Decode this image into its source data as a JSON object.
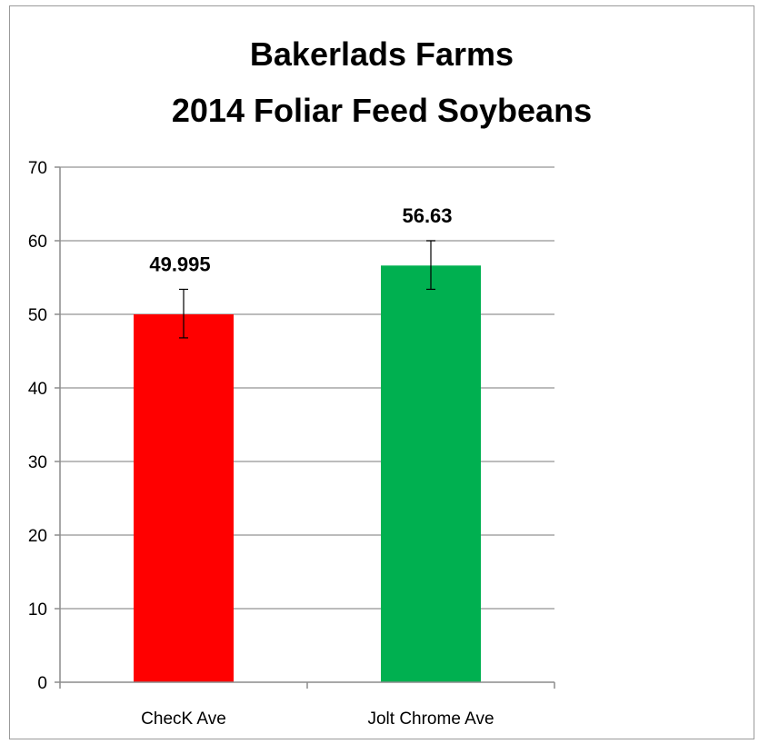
{
  "chart_data": {
    "type": "bar",
    "title": [
      "Bakerlads Farms",
      "2014 Foliar Feed Soybeans"
    ],
    "categories": [
      "ChecK Ave",
      "Jolt Chrome Ave"
    ],
    "values": [
      49.995,
      56.63
    ],
    "value_labels": [
      "49.995",
      "56.63"
    ],
    "error_bars": [
      {
        "low": 46.8,
        "high": 53.4
      },
      {
        "low": 53.4,
        "high": 60.0
      }
    ],
    "colors": [
      "#ff0000",
      "#00b050"
    ],
    "ylim": [
      0,
      70
    ],
    "yticks": [
      "0",
      "10",
      "20",
      "30",
      "40",
      "50",
      "60",
      "70"
    ],
    "xlabel": "",
    "ylabel": "",
    "grid": true,
    "legend": "none"
  }
}
